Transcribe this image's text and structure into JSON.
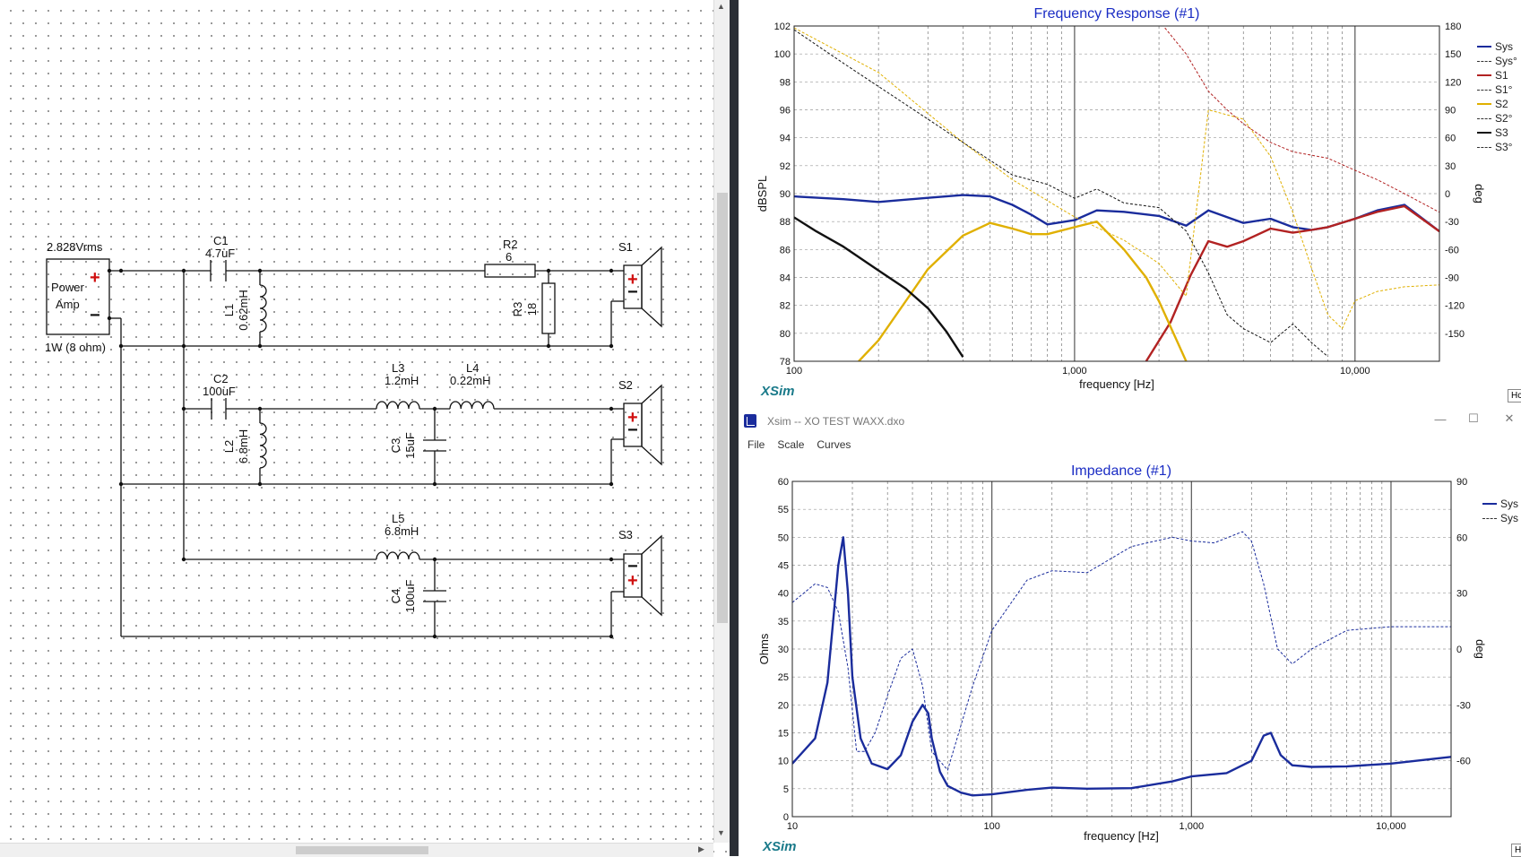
{
  "schematic": {
    "source_voltage": "2.828Vrms",
    "source_name_1": "Power",
    "source_name_2": "Amp",
    "source_power": "1W (8 ohm)",
    "plus": "+",
    "minus": "−",
    "components": {
      "c1_name": "C1",
      "c1_value": "4.7uF",
      "l1_name": "L1",
      "l1_value": "0.62mH",
      "r2_name": "R2",
      "r2_value": "6",
      "r3_name": "R3",
      "r3_value": "18",
      "c2_name": "C2",
      "c2_value": "100uF",
      "l2_name": "L2",
      "l2_value": "6.8mH",
      "l3_name": "L3",
      "l3_value": "1.2mH",
      "l4_name": "L4",
      "l4_value": "0.22mH",
      "c3_name": "C3",
      "c3_value": "15uF",
      "l5_name": "L5",
      "l5_value": "6.8mH",
      "c4_name": "C4",
      "c4_value": "100uF"
    },
    "speakers": [
      "S1",
      "S2",
      "S3"
    ]
  },
  "frequency_window": {
    "brand": "XSim",
    "corner_button": "Hc"
  },
  "impedance_window": {
    "window_title": "Xsim -- XO TEST WAXX.dxo",
    "menu": [
      "File",
      "Scale",
      "Curves"
    ],
    "brand": "XSim",
    "corner_button": "H"
  },
  "colors": {
    "sys": "#1a2c9c",
    "s1": "#b22222",
    "s2": "#e0b000",
    "s3": "#111111",
    "title": "#1a2cc4",
    "brand": "#1a7a8a"
  },
  "chart_data": [
    {
      "type": "line",
      "title": "Frequency Response (#1)",
      "xlabel": "frequency [Hz]",
      "ylabel": "dBSPL",
      "y2label": "deg",
      "xscale": "log",
      "xlim": [
        100,
        20000
      ],
      "ylim": [
        78,
        102
      ],
      "y2lim": [
        -180,
        180
      ],
      "x_tick_labels": [
        "100",
        "1,000",
        "10,000"
      ],
      "y_ticks": [
        78,
        80,
        82,
        84,
        86,
        88,
        90,
        92,
        94,
        96,
        98,
        100,
        102
      ],
      "y2_ticks": [
        -150,
        -120,
        -90,
        -60,
        -30,
        0,
        30,
        60,
        90,
        120,
        150,
        180
      ],
      "legend_position": "right",
      "legend": [
        "Sys",
        "Sys°",
        "S1",
        "S1°",
        "S2",
        "S2°",
        "S3",
        "S3°"
      ],
      "series": [
        {
          "name": "Sys",
          "axis": "y",
          "x": [
            100,
            150,
            200,
            300,
            400,
            500,
            600,
            700,
            800,
            1000,
            1200,
            1500,
            2000,
            2500,
            3000,
            4000,
            5000,
            6000,
            7000,
            8000,
            10000,
            12000,
            15000,
            20000
          ],
          "y": [
            89.8,
            89.6,
            89.4,
            89.7,
            89.9,
            89.8,
            89.2,
            88.5,
            87.8,
            88.1,
            88.8,
            88.7,
            88.4,
            87.7,
            88.8,
            87.9,
            88.2,
            87.6,
            87.4,
            87.6,
            88.2,
            88.8,
            89.2,
            87.3
          ]
        },
        {
          "name": "S1",
          "axis": "y",
          "x": [
            1800,
            2200,
            2600,
            3000,
            3500,
            4000,
            5000,
            6000,
            7000,
            8000,
            10000,
            12000,
            15000,
            20000
          ],
          "y": [
            78,
            80.8,
            84.2,
            86.6,
            86.2,
            86.6,
            87.5,
            87.2,
            87.4,
            87.6,
            88.2,
            88.7,
            89.1,
            87.3
          ]
        },
        {
          "name": "S2",
          "axis": "y",
          "x": [
            170,
            200,
            250,
            300,
            400,
            500,
            600,
            700,
            800,
            1000,
            1200,
            1500,
            1800,
            2000,
            2500
          ],
          "y": [
            78,
            79.5,
            82.3,
            84.6,
            87.0,
            87.9,
            87.5,
            87.1,
            87.1,
            87.6,
            88.0,
            86.0,
            84.0,
            82.3,
            78
          ]
        },
        {
          "name": "S3",
          "axis": "y",
          "x": [
            100,
            120,
            150,
            200,
            250,
            300,
            350,
            400
          ],
          "y": [
            88.3,
            87.3,
            86.2,
            84.5,
            83.2,
            81.8,
            80.1,
            78.3
          ]
        },
        {
          "name": "S2°",
          "axis": "y2",
          "x": [
            100,
            200,
            400,
            600,
            1000,
            1500,
            2000,
            2500,
            3000,
            4000,
            5000,
            6000,
            7000,
            8000,
            9000,
            10000,
            12000,
            15000,
            20000
          ],
          "y": [
            178,
            130,
            55,
            15,
            -25,
            -50,
            -75,
            -110,
            90,
            80,
            40,
            -20,
            -80,
            -130,
            -145,
            -115,
            -105,
            -100,
            -98
          ]
        },
        {
          "name": "S3°",
          "axis": "y2",
          "x": [
            100,
            150,
            200,
            300,
            400,
            600,
            800,
            1000,
            1200,
            1500,
            2000,
            2500,
            3000,
            3500,
            4000,
            5000,
            6000,
            7000,
            8000
          ],
          "y": [
            176,
            140,
            115,
            80,
            55,
            20,
            10,
            -5,
            5,
            -10,
            -15,
            -40,
            -85,
            -130,
            -145,
            -160,
            -140,
            -160,
            -175
          ]
        },
        {
          "name": "S1°",
          "axis": "y2",
          "x": [
            2100,
            2500,
            3000,
            3500,
            4000,
            5000,
            6000,
            8000,
            10000,
            12000,
            15000,
            20000
          ],
          "y": [
            178,
            150,
            110,
            90,
            75,
            55,
            45,
            38,
            25,
            15,
            0,
            -20
          ]
        }
      ]
    },
    {
      "type": "line",
      "title": "Impedance (#1)",
      "xlabel": "frequency [Hz]",
      "ylabel": "Ohms",
      "y2label": "deg",
      "xscale": "log",
      "xlim": [
        10,
        20000
      ],
      "ylim": [
        0,
        60
      ],
      "y2lim": [
        -90,
        90
      ],
      "x_tick_labels": [
        "10",
        "100",
        "1,000",
        "10,000"
      ],
      "y_ticks": [
        0,
        5,
        10,
        15,
        20,
        25,
        30,
        35,
        40,
        45,
        50,
        55,
        60
      ],
      "y2_ticks": [
        -60,
        -30,
        0,
        30,
        60,
        90
      ],
      "legend_position": "right",
      "legend": [
        "Sys",
        "Sys"
      ],
      "series": [
        {
          "name": "Sys",
          "axis": "y",
          "x": [
            10,
            13,
            15,
            17,
            18,
            19,
            20,
            22,
            25,
            30,
            35,
            40,
            45,
            48,
            50,
            55,
            60,
            70,
            80,
            100,
            150,
            200,
            300,
            500,
            800,
            1000,
            1500,
            2000,
            2300,
            2500,
            2800,
            3200,
            4000,
            6000,
            10000,
            20000
          ],
          "y": [
            9.5,
            14,
            24,
            45,
            50,
            40,
            25,
            14,
            9.5,
            8.5,
            11,
            17,
            20,
            18.5,
            14,
            8,
            5.5,
            4.3,
            3.8,
            4,
            4.8,
            5.2,
            5.0,
            5.1,
            6.3,
            7.2,
            7.8,
            10,
            14.5,
            15,
            11,
            9.2,
            8.9,
            9.0,
            9.5,
            10.7
          ]
        },
        {
          "name": "Sys",
          "axis": "y2",
          "x": [
            10,
            13,
            15,
            17,
            19,
            21,
            23,
            26,
            30,
            35,
            40,
            45,
            50,
            60,
            80,
            100,
            150,
            200,
            300,
            500,
            800,
            1000,
            1300,
            1800,
            2000,
            2300,
            2700,
            3200,
            4000,
            6000,
            10000,
            20000
          ],
          "y": [
            25,
            35,
            33,
            20,
            -10,
            -55,
            -55,
            -45,
            -25,
            -5,
            0,
            -20,
            -55,
            -65,
            -20,
            10,
            37,
            42,
            41,
            55,
            60,
            58,
            57,
            63,
            58,
            35,
            0,
            -8,
            0,
            10,
            12,
            12
          ]
        }
      ]
    }
  ]
}
